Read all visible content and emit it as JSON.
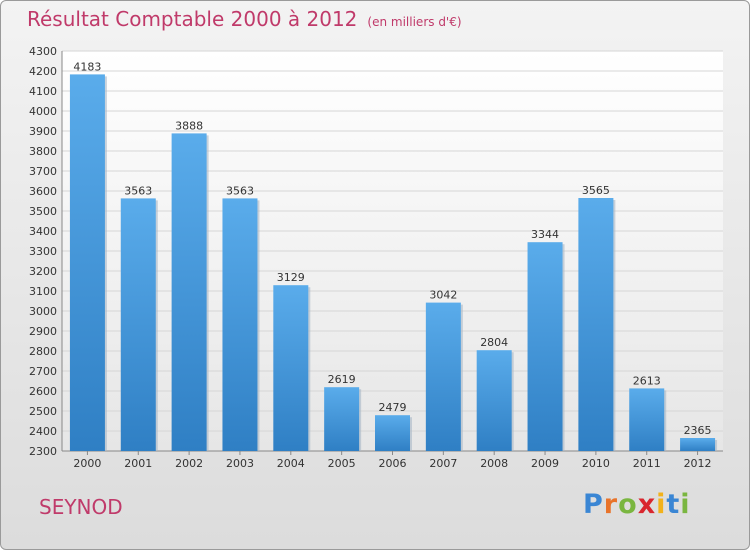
{
  "chart_data": {
    "type": "bar",
    "title": "Résultat Comptable 2000 à 2012",
    "subtitle": "(en milliers d'€)",
    "categories": [
      "2000",
      "2001",
      "2002",
      "2003",
      "2004",
      "2005",
      "2006",
      "2007",
      "2008",
      "2009",
      "2010",
      "2011",
      "2012"
    ],
    "values": [
      4183,
      3563,
      3888,
      3563,
      3129,
      2619,
      2479,
      3042,
      2804,
      3344,
      3565,
      2613,
      2365
    ],
    "ylim": [
      2300,
      4300
    ],
    "yticks": [
      2300,
      2400,
      2500,
      2600,
      2700,
      2800,
      2900,
      3000,
      3100,
      3200,
      3300,
      3400,
      3500,
      3600,
      3700,
      3800,
      3900,
      4000,
      4100,
      4200,
      4300
    ],
    "grid": true,
    "bar_color": "#4f9fe0"
  },
  "city": "SEYNOD",
  "logo": {
    "letters": [
      "P",
      "r",
      "o",
      "x",
      "i",
      "t",
      "i"
    ],
    "colors": [
      "#3a86d4",
      "#e8732a",
      "#7ab640",
      "#d9262e",
      "#f2b21b",
      "#3a86d4",
      "#7ab640"
    ]
  }
}
